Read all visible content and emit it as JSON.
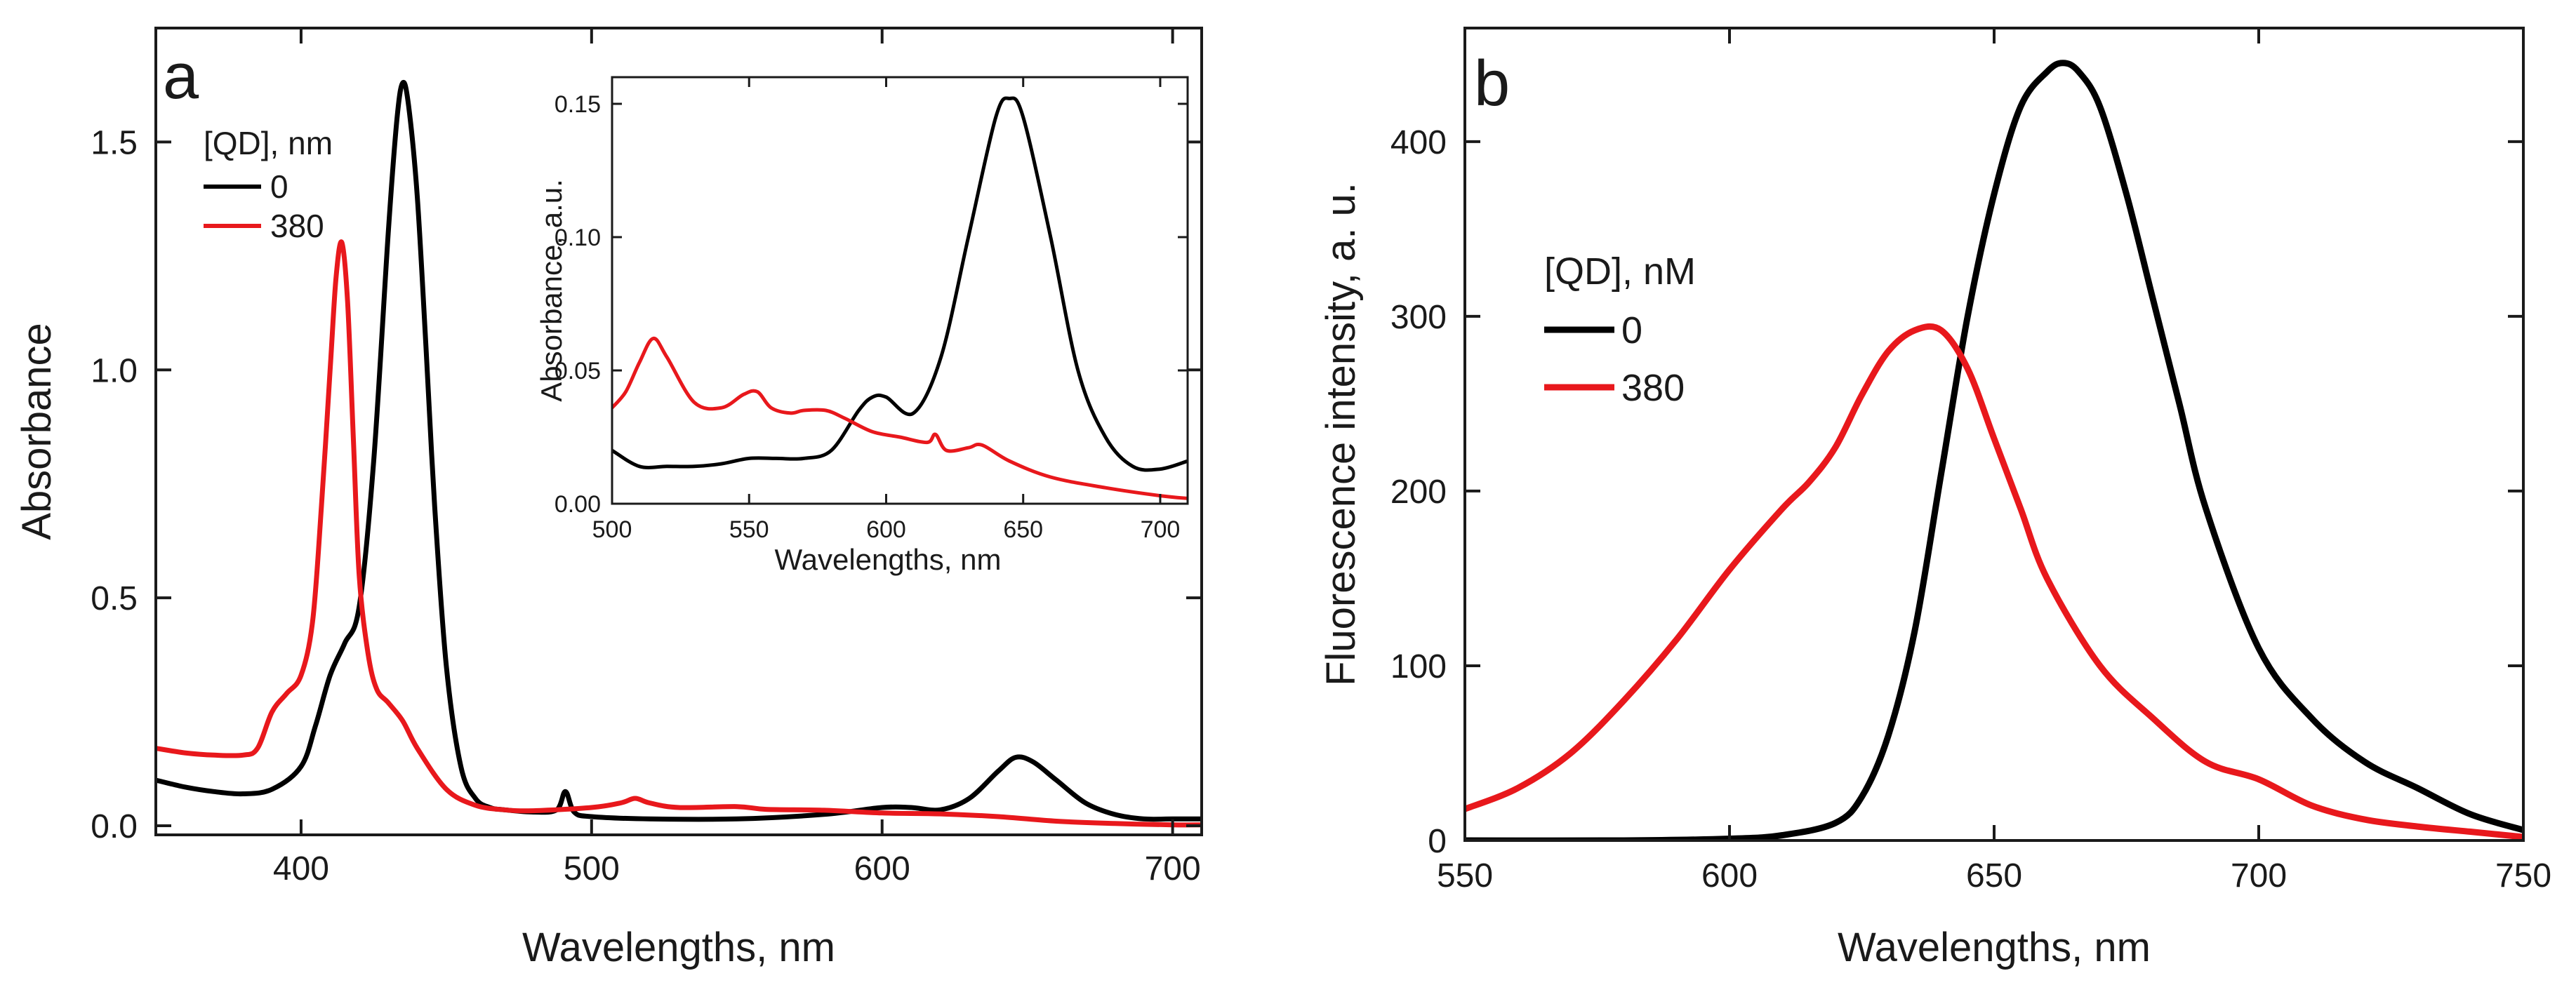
{
  "chart_data": [
    {
      "panel": "a",
      "type": "line",
      "xlabel": "Wavelengths, nm",
      "ylabel": "Absorbance",
      "xlim": [
        350,
        710
      ],
      "ylim": [
        -0.02,
        1.75
      ],
      "xticks": [
        400,
        500,
        600,
        700
      ],
      "yticks": [
        0.0,
        0.5,
        1.0,
        1.5
      ],
      "xtick_labels": [
        "400",
        "500",
        "600",
        "700"
      ],
      "ytick_labels": [
        "0.0",
        "0.5",
        "1.0",
        "1.5"
      ],
      "legend": {
        "title": "[QD], nm",
        "entries": [
          "0",
          "380"
        ],
        "location": "top-left"
      },
      "series": [
        {
          "name": "0",
          "color": "#000000",
          "x": [
            350,
            360,
            370,
            380,
            390,
            400,
            405,
            410,
            415,
            420,
            425,
            430,
            433,
            435,
            437,
            440,
            443,
            446,
            450,
            455,
            460,
            465,
            470,
            480,
            488,
            491,
            494,
            500,
            520,
            550,
            580,
            600,
            610,
            620,
            630,
            640,
            646,
            652,
            660,
            670,
            680,
            690,
            700,
            710
          ],
          "y": [
            0.1,
            0.085,
            0.075,
            0.07,
            0.08,
            0.13,
            0.22,
            0.33,
            0.4,
            0.48,
            0.8,
            1.3,
            1.55,
            1.63,
            1.58,
            1.38,
            1.05,
            0.7,
            0.35,
            0.13,
            0.06,
            0.04,
            0.035,
            0.03,
            0.035,
            0.075,
            0.03,
            0.02,
            0.015,
            0.015,
            0.025,
            0.04,
            0.04,
            0.035,
            0.06,
            0.12,
            0.15,
            0.14,
            0.1,
            0.05,
            0.025,
            0.015,
            0.015,
            0.015
          ]
        },
        {
          "name": "380",
          "color": "#e8181c",
          "x": [
            350,
            360,
            370,
            380,
            385,
            390,
            395,
            400,
            404,
            407,
            410,
            412,
            414,
            416,
            418,
            420,
            423,
            426,
            430,
            435,
            440,
            450,
            460,
            470,
            480,
            500,
            510,
            515,
            520,
            530,
            550,
            560,
            580,
            600,
            620,
            640,
            660,
            680,
            700,
            710
          ],
          "y": [
            0.17,
            0.16,
            0.155,
            0.155,
            0.17,
            0.25,
            0.29,
            0.33,
            0.45,
            0.7,
            1.0,
            1.2,
            1.28,
            1.15,
            0.85,
            0.55,
            0.38,
            0.3,
            0.27,
            0.23,
            0.17,
            0.08,
            0.045,
            0.035,
            0.033,
            0.04,
            0.05,
            0.06,
            0.05,
            0.04,
            0.042,
            0.036,
            0.034,
            0.028,
            0.026,
            0.02,
            0.01,
            0.005,
            0.002,
            0.002
          ]
        }
      ],
      "inset": {
        "type": "line",
        "xlabel": "Wavelengths, nm",
        "ylabel": "Absorbance, a.u.",
        "xlim": [
          500,
          710
        ],
        "ylim": [
          0.0,
          0.16
        ],
        "xticks": [
          500,
          550,
          600,
          650,
          700
        ],
        "yticks": [
          0.0,
          0.05,
          0.1,
          0.15
        ],
        "xtick_labels": [
          "500",
          "550",
          "600",
          "650",
          "700"
        ],
        "ytick_labels": [
          "0.00",
          "0.05",
          "0.10",
          "0.15"
        ],
        "series": [
          {
            "name": "0",
            "color": "#000000",
            "x": [
              500,
              510,
              520,
              530,
              540,
              550,
              560,
              570,
              580,
              590,
              595,
              600,
              610,
              620,
              630,
              640,
              645,
              650,
              660,
              670,
              680,
              690,
              700,
              710
            ],
            "y": [
              0.02,
              0.014,
              0.014,
              0.014,
              0.015,
              0.017,
              0.017,
              0.017,
              0.02,
              0.035,
              0.04,
              0.04,
              0.034,
              0.055,
              0.1,
              0.145,
              0.152,
              0.145,
              0.1,
              0.05,
              0.025,
              0.014,
              0.013,
              0.016
            ]
          },
          {
            "name": "380",
            "color": "#e8181c",
            "x": [
              500,
              505,
              510,
              515,
              520,
              530,
              540,
              548,
              553,
              558,
              565,
              570,
              578,
              585,
              595,
              605,
              615,
              618,
              622,
              630,
              635,
              645,
              660,
              680,
              700,
              710
            ],
            "y": [
              0.036,
              0.042,
              0.053,
              0.062,
              0.055,
              0.038,
              0.036,
              0.041,
              0.042,
              0.036,
              0.034,
              0.035,
              0.035,
              0.032,
              0.027,
              0.025,
              0.023,
              0.026,
              0.02,
              0.021,
              0.022,
              0.016,
              0.01,
              0.006,
              0.003,
              0.002
            ]
          }
        ]
      }
    },
    {
      "panel": "b",
      "type": "line",
      "xlabel": "Wavelengths, nm",
      "ylabel": "Fluorescence intensity, a. u.",
      "xlim": [
        550,
        750
      ],
      "ylim": [
        0,
        465
      ],
      "xticks": [
        550,
        600,
        650,
        700,
        750
      ],
      "yticks": [
        0,
        100,
        200,
        300,
        400
      ],
      "xtick_labels": [
        "550",
        "600",
        "650",
        "700",
        "750"
      ],
      "ytick_labels": [
        "0",
        "100",
        "200",
        "300",
        "400"
      ],
      "legend": {
        "title": "[QD], nM",
        "entries": [
          "0",
          "380"
        ],
        "location": "middle-left"
      },
      "series": [
        {
          "name": "0",
          "color": "#000000",
          "x": [
            550,
            580,
            600,
            610,
            620,
            625,
            630,
            635,
            640,
            645,
            650,
            655,
            660,
            663,
            666,
            670,
            675,
            680,
            685,
            690,
            700,
            710,
            720,
            730,
            740,
            750
          ],
          "y": [
            0,
            0,
            1,
            3,
            10,
            25,
            60,
            120,
            210,
            300,
            370,
            420,
            440,
            445,
            440,
            420,
            370,
            310,
            250,
            190,
            110,
            70,
            45,
            30,
            15,
            6
          ]
        },
        {
          "name": "380",
          "color": "#e8181c",
          "x": [
            550,
            560,
            570,
            580,
            590,
            600,
            610,
            615,
            620,
            625,
            630,
            635,
            640,
            645,
            650,
            655,
            660,
            670,
            680,
            690,
            700,
            710,
            720,
            730,
            740,
            750
          ],
          "y": [
            18,
            30,
            50,
            80,
            115,
            155,
            190,
            205,
            225,
            255,
            280,
            292,
            292,
            270,
            230,
            190,
            150,
            100,
            70,
            45,
            35,
            20,
            12,
            8,
            5,
            2
          ]
        }
      ]
    }
  ]
}
